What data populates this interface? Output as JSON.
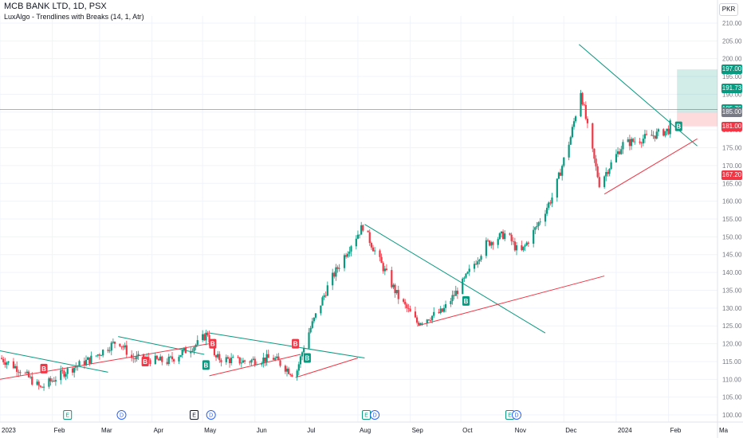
{
  "header": {
    "title": "MCB BANK LTD, 1D, PSX",
    "indicator": "LuxAlgo - Trendlines with Breaks (14, 1, Atr)"
  },
  "currency": "PKR",
  "price_tags": [
    {
      "label": "197.00",
      "value": 197.0,
      "color": "#089981"
    },
    {
      "label": "191.73",
      "value": 191.73,
      "color": "#089981"
    },
    {
      "label": "185.76",
      "value": 185.76,
      "color": "#089981"
    },
    {
      "label": "185.00",
      "value": 185.0,
      "color": "#787b86"
    },
    {
      "label": "181.00",
      "value": 181.0,
      "color": "#f23645"
    },
    {
      "label": "167.20",
      "value": 167.2,
      "color": "#f23645"
    }
  ],
  "chart_data": {
    "type": "candlestick",
    "title": "MCB BANK LTD, 1D, PSX",
    "ylim": [
      98,
      212
    ],
    "y_ticks": [
      100,
      105,
      110,
      115,
      120,
      125,
      130,
      135,
      140,
      145,
      150,
      155,
      160,
      165,
      170,
      175,
      180,
      185,
      190,
      195,
      200,
      205,
      210
    ],
    "y_tick_labels": [
      "100.00",
      "105.00",
      "110.00",
      "115.00",
      "120.00",
      "125.00",
      "130.00",
      "135.00",
      "140.00",
      "145.00",
      "150.00",
      "155.00",
      "160.00",
      "165.00",
      "170.00",
      "175.00",
      "180.00",
      "185.00",
      "190.00",
      "195.00",
      "200.00",
      "205.00",
      "210.00"
    ],
    "x_range": [
      "2023-01-01",
      "2024-03-01"
    ],
    "x_ticks": [
      {
        "label": "2023",
        "date": "2023-01-01"
      },
      {
        "label": "Feb",
        "date": "2023-02-01"
      },
      {
        "label": "Mar",
        "date": "2023-03-01"
      },
      {
        "label": "Apr",
        "date": "2023-04-01"
      },
      {
        "label": "May",
        "date": "2023-05-01"
      },
      {
        "label": "Jun",
        "date": "2023-06-01"
      },
      {
        "label": "Jul",
        "date": "2023-07-01"
      },
      {
        "label": "Aug",
        "date": "2023-08-01"
      },
      {
        "label": "Sep",
        "date": "2023-09-01"
      },
      {
        "label": "Oct",
        "date": "2023-10-01"
      },
      {
        "label": "Nov",
        "date": "2023-11-01"
      },
      {
        "label": "Dec",
        "date": "2023-12-01"
      },
      {
        "label": "2024",
        "date": "2024-01-01"
      },
      {
        "label": "Feb",
        "date": "2024-02-01"
      },
      {
        "label": "Ma",
        "date": "2024-03-01"
      }
    ],
    "key_points": [
      {
        "date": "2023-01-01",
        "close": 116
      },
      {
        "date": "2023-01-12",
        "close": 113
      },
      {
        "date": "2023-01-25",
        "close": 107.5
      },
      {
        "date": "2023-02-08",
        "close": 112
      },
      {
        "date": "2023-02-25",
        "close": 116
      },
      {
        "date": "2023-03-12",
        "close": 121
      },
      {
        "date": "2023-03-20",
        "close": 116
      },
      {
        "date": "2023-04-10",
        "close": 115
      },
      {
        "date": "2023-04-28",
        "close": 120
      },
      {
        "date": "2023-05-04",
        "close": 123
      },
      {
        "date": "2023-05-08",
        "close": 116
      },
      {
        "date": "2023-05-25",
        "close": 115
      },
      {
        "date": "2023-06-12",
        "close": 116
      },
      {
        "date": "2023-06-25",
        "close": 111
      },
      {
        "date": "2023-07-01",
        "close": 121
      },
      {
        "date": "2023-07-15",
        "close": 137
      },
      {
        "date": "2023-07-28",
        "close": 148
      },
      {
        "date": "2023-08-04",
        "close": 153
      },
      {
        "date": "2023-08-12",
        "close": 145
      },
      {
        "date": "2023-08-25",
        "close": 133
      },
      {
        "date": "2023-09-05",
        "close": 126
      },
      {
        "date": "2023-09-20",
        "close": 129
      },
      {
        "date": "2023-10-02",
        "close": 137
      },
      {
        "date": "2023-10-16",
        "close": 148
      },
      {
        "date": "2023-10-28",
        "close": 151
      },
      {
        "date": "2023-11-05",
        "close": 145
      },
      {
        "date": "2023-11-15",
        "close": 153
      },
      {
        "date": "2023-11-25",
        "close": 162
      },
      {
        "date": "2023-12-05",
        "close": 178
      },
      {
        "date": "2023-12-11",
        "close": 191
      },
      {
        "date": "2023-12-16",
        "close": 178
      },
      {
        "date": "2023-12-22",
        "close": 165
      },
      {
        "date": "2024-01-05",
        "close": 176
      },
      {
        "date": "2024-01-20",
        "close": 178
      },
      {
        "date": "2024-02-01",
        "close": 180
      },
      {
        "date": "2024-02-05",
        "close": 185.76
      }
    ],
    "trendlines": [
      {
        "kind": "resistance",
        "points": [
          {
            "date": "2023-01-01",
            "value": 118
          },
          {
            "date": "2023-03-06",
            "value": 112
          }
        ]
      },
      {
        "kind": "resistance",
        "points": [
          {
            "date": "2023-03-12",
            "value": 122
          },
          {
            "date": "2023-05-02",
            "value": 117
          }
        ]
      },
      {
        "kind": "resistance",
        "points": [
          {
            "date": "2023-05-05",
            "value": 123
          },
          {
            "date": "2023-08-05",
            "value": 116
          }
        ]
      },
      {
        "kind": "resistance",
        "points": [
          {
            "date": "2023-08-05",
            "value": 153.5
          },
          {
            "date": "2023-11-20",
            "value": 123
          }
        ]
      },
      {
        "kind": "resistance",
        "points": [
          {
            "date": "2023-12-10",
            "value": 204
          },
          {
            "date": "2024-02-18",
            "value": 175.5
          }
        ]
      },
      {
        "kind": "support",
        "points": [
          {
            "date": "2023-01-01",
            "value": 110
          },
          {
            "date": "2023-05-05",
            "value": 120
          }
        ]
      },
      {
        "kind": "support",
        "points": [
          {
            "date": "2023-05-05",
            "value": 111
          },
          {
            "date": "2023-06-28",
            "value": 117
          }
        ]
      },
      {
        "kind": "support",
        "points": [
          {
            "date": "2023-06-25",
            "value": 110.5
          },
          {
            "date": "2023-08-01",
            "value": 116
          }
        ]
      },
      {
        "kind": "support",
        "points": [
          {
            "date": "2023-09-05",
            "value": 125
          },
          {
            "date": "2023-12-25",
            "value": 139
          }
        ]
      },
      {
        "kind": "support",
        "points": [
          {
            "date": "2023-12-25",
            "value": 162
          },
          {
            "date": "2024-02-18",
            "value": 177.5
          }
        ]
      }
    ],
    "signals": [
      {
        "label": "B",
        "kind": "bear",
        "date": "2023-01-27",
        "value": 113
      },
      {
        "label": "B",
        "kind": "bear",
        "date": "2023-03-28",
        "value": 115
      },
      {
        "label": "B",
        "kind": "bull",
        "date": "2023-05-03",
        "value": 114
      },
      {
        "label": "B",
        "kind": "bear",
        "date": "2023-05-07",
        "value": 120
      },
      {
        "label": "B",
        "kind": "bear",
        "date": "2023-06-25",
        "value": 120
      },
      {
        "label": "B",
        "kind": "bull",
        "date": "2023-07-02",
        "value": 116
      },
      {
        "label": "B",
        "kind": "bull",
        "date": "2023-10-04",
        "value": 132
      },
      {
        "label": "B",
        "kind": "bull",
        "date": "2024-02-07",
        "value": 181
      }
    ],
    "events": [
      {
        "label": "E",
        "date": "2023-02-10",
        "color": "#089981"
      },
      {
        "label": "D",
        "date": "2023-03-14",
        "color": "#2962ff"
      },
      {
        "label": "E",
        "date": "2023-04-26",
        "color": "#131722"
      },
      {
        "label": "D",
        "date": "2023-05-06",
        "color": "#2962ff"
      },
      {
        "label": "E",
        "date": "2023-08-06",
        "color": "#089981"
      },
      {
        "label": "D",
        "date": "2023-08-11",
        "color": "#2962ff"
      },
      {
        "label": "E",
        "date": "2023-10-30",
        "color": "#089981"
      },
      {
        "label": "D",
        "date": "2023-11-03",
        "color": "#2962ff"
      }
    ],
    "position_zone": {
      "start": "2024-02-06",
      "entry": 185.0,
      "target": 197.0,
      "stop": 181.0
    },
    "horizontal_line": 185.76,
    "colors": {
      "up": "#089981",
      "down": "#f23645"
    }
  }
}
